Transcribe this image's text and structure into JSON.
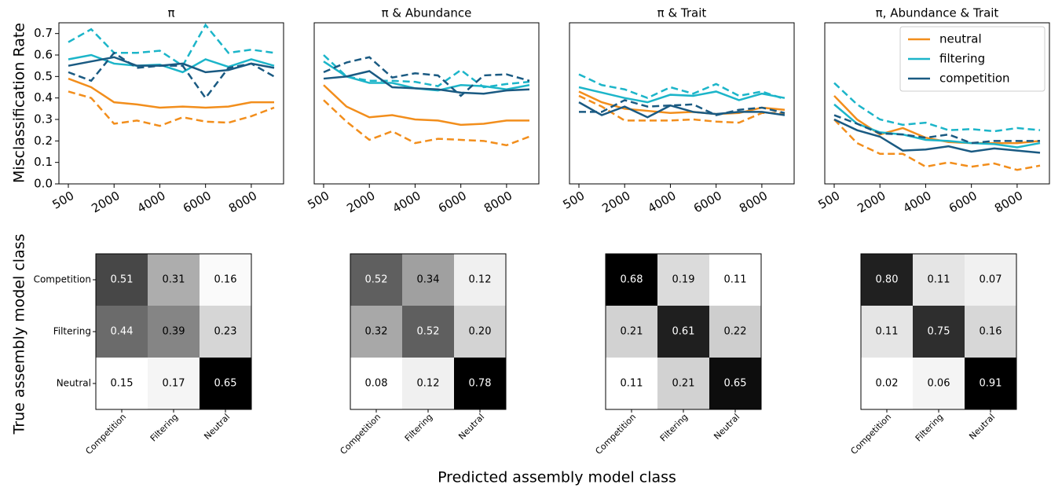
{
  "shared_labels": {
    "top_ylabel": "Misclassification Rate",
    "bottom_ylabel": "True assembly model class",
    "bottom_xlabel": "Predicted assembly model class"
  },
  "chart_data": [
    {
      "type": "line",
      "title": "π",
      "categories": [
        500,
        null,
        2000,
        null,
        4000,
        null,
        6000,
        null,
        8000,
        null
      ],
      "ylim": [
        0,
        0.75
      ],
      "yticks": [
        {
          "value": 0,
          "label": "0.0"
        },
        0.1,
        0.2,
        0.3,
        0.4,
        0.5,
        0.6,
        0.7
      ],
      "series": [
        {
          "color": "#f28e1c",
          "values": [
            0.49,
            0.45,
            0.38,
            0.37,
            0.355,
            0.36,
            0.355,
            0.36,
            0.38,
            0.38
          ],
          "dashed_values": [
            0.43,
            0.4,
            0.28,
            0.295,
            0.27,
            0.31,
            0.29,
            0.285,
            0.315,
            0.355
          ]
        },
        {
          "color": "#1cb5c9",
          "values": [
            0.58,
            0.6,
            0.56,
            0.55,
            0.555,
            0.52,
            0.58,
            0.545,
            0.58,
            0.55
          ],
          "dashed_values": [
            0.66,
            0.72,
            0.61,
            0.61,
            0.62,
            0.55,
            0.74,
            0.61,
            0.625,
            0.61
          ]
        },
        {
          "color": "#1a5a82",
          "values": [
            0.55,
            0.57,
            0.59,
            0.55,
            0.55,
            0.56,
            0.52,
            0.53,
            0.56,
            0.54
          ],
          "dashed_values": [
            0.52,
            0.48,
            0.61,
            0.54,
            0.55,
            0.55,
            0.4,
            0.54,
            0.56,
            0.5
          ]
        }
      ]
    },
    {
      "type": "line",
      "title": "π & Abundance",
      "categories": [
        500,
        null,
        2000,
        null,
        4000,
        null,
        6000,
        null,
        8000,
        null
      ],
      "ylim": [
        0,
        0.75
      ],
      "series": [
        {
          "color": "#f28e1c",
          "values": [
            0.46,
            0.36,
            0.31,
            0.32,
            0.3,
            0.295,
            0.275,
            0.28,
            0.295,
            0.295
          ],
          "dashed_values": [
            0.39,
            0.29,
            0.205,
            0.245,
            0.19,
            0.21,
            0.205,
            0.2,
            0.18,
            0.22
          ]
        },
        {
          "color": "#1cb5c9",
          "values": [
            0.57,
            0.5,
            0.47,
            0.47,
            0.445,
            0.435,
            0.46,
            0.455,
            0.44,
            0.46
          ],
          "dashed_values": [
            0.6,
            0.5,
            0.48,
            0.48,
            0.475,
            0.455,
            0.53,
            0.45,
            0.465,
            0.475
          ]
        },
        {
          "color": "#1a5a82",
          "values": [
            0.49,
            0.5,
            0.525,
            0.45,
            0.445,
            0.44,
            0.425,
            0.42,
            0.435,
            0.44
          ],
          "dashed_values": [
            0.52,
            0.565,
            0.59,
            0.495,
            0.515,
            0.505,
            0.41,
            0.505,
            0.51,
            0.48
          ]
        }
      ]
    },
    {
      "type": "line",
      "title": "π & Trait",
      "categories": [
        500,
        null,
        2000,
        null,
        4000,
        null,
        6000,
        null,
        8000,
        null
      ],
      "ylim": [
        0,
        0.75
      ],
      "series": [
        {
          "color": "#f28e1c",
          "values": [
            0.43,
            0.38,
            0.35,
            0.34,
            0.33,
            0.335,
            0.325,
            0.33,
            0.355,
            0.345
          ],
          "dashed_values": [
            0.41,
            0.36,
            0.295,
            0.295,
            0.295,
            0.3,
            0.29,
            0.285,
            0.33,
            0.33
          ]
        },
        {
          "color": "#1cb5c9",
          "values": [
            0.45,
            0.425,
            0.4,
            0.38,
            0.415,
            0.41,
            0.43,
            0.39,
            0.42,
            0.4
          ],
          "dashed_values": [
            0.51,
            0.46,
            0.44,
            0.4,
            0.45,
            0.42,
            0.465,
            0.41,
            0.43,
            0.395
          ]
        },
        {
          "color": "#1a5a82",
          "values": [
            0.38,
            0.32,
            0.36,
            0.31,
            0.365,
            0.335,
            0.325,
            0.335,
            0.335,
            0.32
          ],
          "dashed_values": [
            0.335,
            0.335,
            0.39,
            0.36,
            0.365,
            0.37,
            0.32,
            0.345,
            0.355,
            0.33
          ]
        }
      ]
    },
    {
      "type": "line",
      "title": "π, Abundance & Trait",
      "categories": [
        500,
        null,
        2000,
        null,
        4000,
        null,
        6000,
        null,
        8000,
        null
      ],
      "ylim": [
        0,
        0.75
      ],
      "legend": "upper right",
      "series": [
        {
          "name": "neutral",
          "color": "#f28e1c",
          "values": [
            0.41,
            0.3,
            0.23,
            0.26,
            0.215,
            0.195,
            0.19,
            0.19,
            0.19,
            0.2
          ],
          "dashed_values": [
            0.3,
            0.19,
            0.14,
            0.14,
            0.08,
            0.1,
            0.08,
            0.095,
            0.065,
            0.085
          ]
        },
        {
          "name": "filtering",
          "color": "#1cb5c9",
          "values": [
            0.37,
            0.28,
            0.24,
            0.23,
            0.205,
            0.2,
            0.19,
            0.185,
            0.17,
            0.19
          ],
          "dashed_values": [
            0.47,
            0.37,
            0.3,
            0.275,
            0.285,
            0.25,
            0.255,
            0.245,
            0.26,
            0.25
          ]
        },
        {
          "name": "competition",
          "color": "#1a5a82",
          "values": [
            0.3,
            0.25,
            0.22,
            0.155,
            0.16,
            0.175,
            0.15,
            0.165,
            0.155,
            0.145
          ],
          "dashed_values": [
            0.32,
            0.28,
            0.235,
            0.23,
            0.215,
            0.23,
            0.19,
            0.2,
            0.2,
            0.2
          ]
        }
      ]
    },
    {
      "type": "heatmap",
      "cmap": "Greys",
      "y_categories": [
        "Competition",
        "Filtering",
        "Neutral"
      ],
      "x_categories": [
        "Competition",
        "Filtering",
        "Neutral"
      ],
      "values": [
        [
          0.51,
          0.31,
          0.16
        ],
        [
          0.44,
          0.39,
          0.23
        ],
        [
          0.15,
          0.17,
          0.65
        ]
      ],
      "value_labels": [
        [
          "0.51",
          "0.31",
          "0.16"
        ],
        [
          "0.44",
          "0.39",
          "0.23"
        ],
        [
          "0.15",
          "0.17",
          "0.65"
        ]
      ]
    },
    {
      "type": "heatmap",
      "cmap": "Greys",
      "x_categories": [
        "Competition",
        "Filtering",
        "Neutral"
      ],
      "values": [
        [
          0.52,
          0.34,
          0.12
        ],
        [
          0.32,
          0.52,
          0.2
        ],
        [
          0.08,
          0.12,
          0.78
        ]
      ],
      "value_labels": [
        [
          "0.52",
          "0.34",
          "0.12"
        ],
        [
          "0.32",
          "0.52",
          "0.20"
        ],
        [
          "0.08",
          "0.12",
          "0.78"
        ]
      ]
    },
    {
      "type": "heatmap",
      "cmap": "Greys",
      "x_categories": [
        "Competition",
        "Filtering",
        "Neutral"
      ],
      "values": [
        [
          0.68,
          0.19,
          0.11
        ],
        [
          0.21,
          0.61,
          0.22
        ],
        [
          0.11,
          0.21,
          0.65
        ]
      ],
      "value_labels": [
        [
          "0.68",
          "0.19",
          "0.11"
        ],
        [
          "0.21",
          "0.61",
          "0.22"
        ],
        [
          "0.11",
          "0.21",
          "0.65"
        ]
      ]
    },
    {
      "type": "heatmap",
      "cmap": "Greys",
      "x_categories": [
        "Competition",
        "Filtering",
        "Neutral"
      ],
      "values": [
        [
          0.8,
          0.11,
          0.07
        ],
        [
          0.11,
          0.75,
          0.16
        ],
        [
          0.02,
          0.06,
          0.91
        ]
      ],
      "value_labels": [
        [
          "0.80",
          "0.11",
          "0.07"
        ],
        [
          "0.11",
          "0.75",
          "0.16"
        ],
        [
          "0.02",
          "0.06",
          "0.91"
        ]
      ]
    }
  ]
}
